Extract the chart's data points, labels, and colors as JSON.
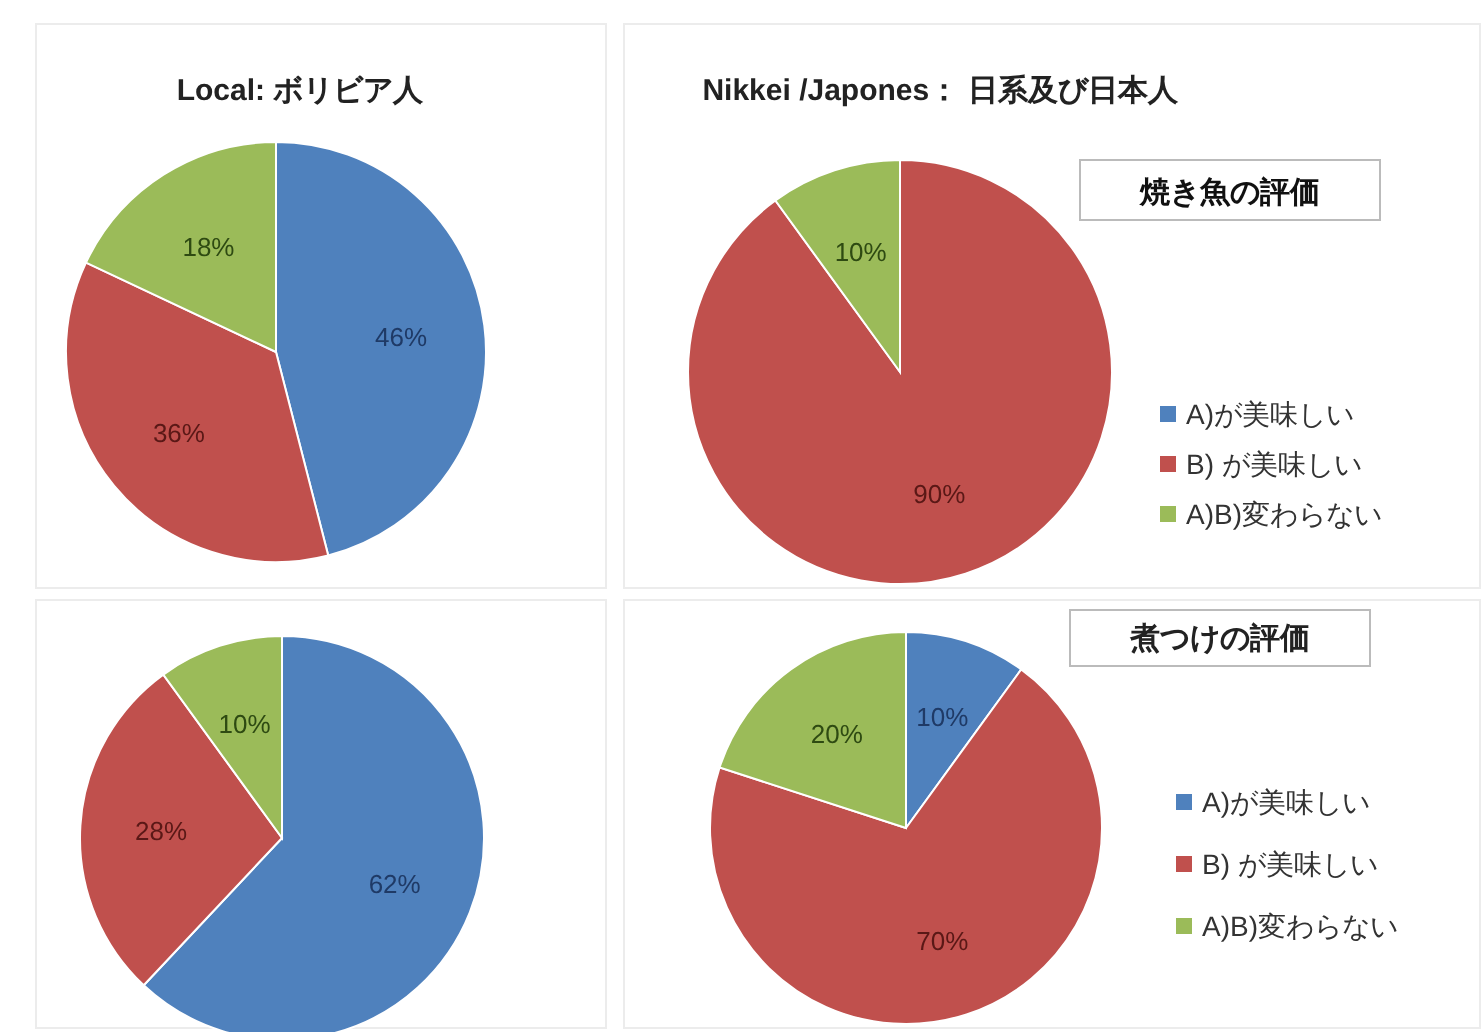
{
  "chart_data": [
    {
      "type": "pie",
      "title": "Local: ボリビア人",
      "categories": [
        null,
        null,
        null
      ],
      "values": [
        46,
        36,
        18
      ],
      "value_labels": [
        "46%",
        "36%",
        "18%"
      ],
      "colors": [
        "#4f81bd",
        "#c0504d",
        "#9bbb59"
      ]
    },
    {
      "type": "pie",
      "title": "Nikkei /Japones： 日系及び日本人",
      "subtitle": "焼き魚の評価",
      "categories": [
        "A)が美味しい",
        "B) が美味しい",
        "A)B)変わらない"
      ],
      "values": [
        0,
        90,
        10
      ],
      "value_labels": [
        null,
        "90%",
        "10%"
      ],
      "colors": [
        "#4f81bd",
        "#c0504d",
        "#9bbb59"
      ],
      "legend": "right"
    },
    {
      "type": "pie",
      "categories": [
        null,
        null,
        null
      ],
      "values": [
        62,
        28,
        10
      ],
      "value_labels": [
        "62%",
        "28%",
        "10%"
      ],
      "colors": [
        "#4f81bd",
        "#c0504d",
        "#9bbb59"
      ]
    },
    {
      "type": "pie",
      "title": "煮つけの評価",
      "categories": [
        "A)が美味しい",
        "B) が美味しい",
        "A)B)変わらない"
      ],
      "values": [
        10,
        70,
        20
      ],
      "value_labels": [
        "10%",
        "70%",
        "20%"
      ],
      "colors": [
        "#4f81bd",
        "#c0504d",
        "#9bbb59"
      ],
      "legend": "right"
    }
  ]
}
